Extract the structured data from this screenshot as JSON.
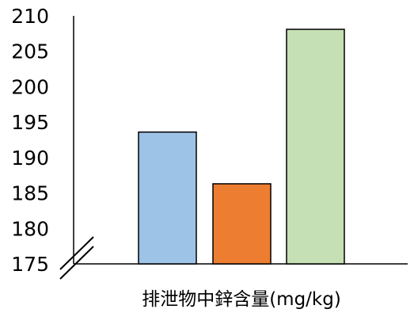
{
  "chart_data": {
    "type": "bar",
    "title": "",
    "xlabel": "排泄物中鋅含量(mg/kg)",
    "ylabel": "",
    "ylim": [
      175,
      210
    ],
    "yticks": [
      175,
      180,
      185,
      190,
      195,
      200,
      205,
      210
    ],
    "axis_break": true,
    "grid": false,
    "legend": "none",
    "categories": [
      "",
      "",
      ""
    ],
    "values": [
      193.6,
      186.3,
      208.1
    ],
    "colors": [
      "#9dc3e6",
      "#ed7d31",
      "#c5e0b4"
    ],
    "outline_color": "#000000"
  }
}
